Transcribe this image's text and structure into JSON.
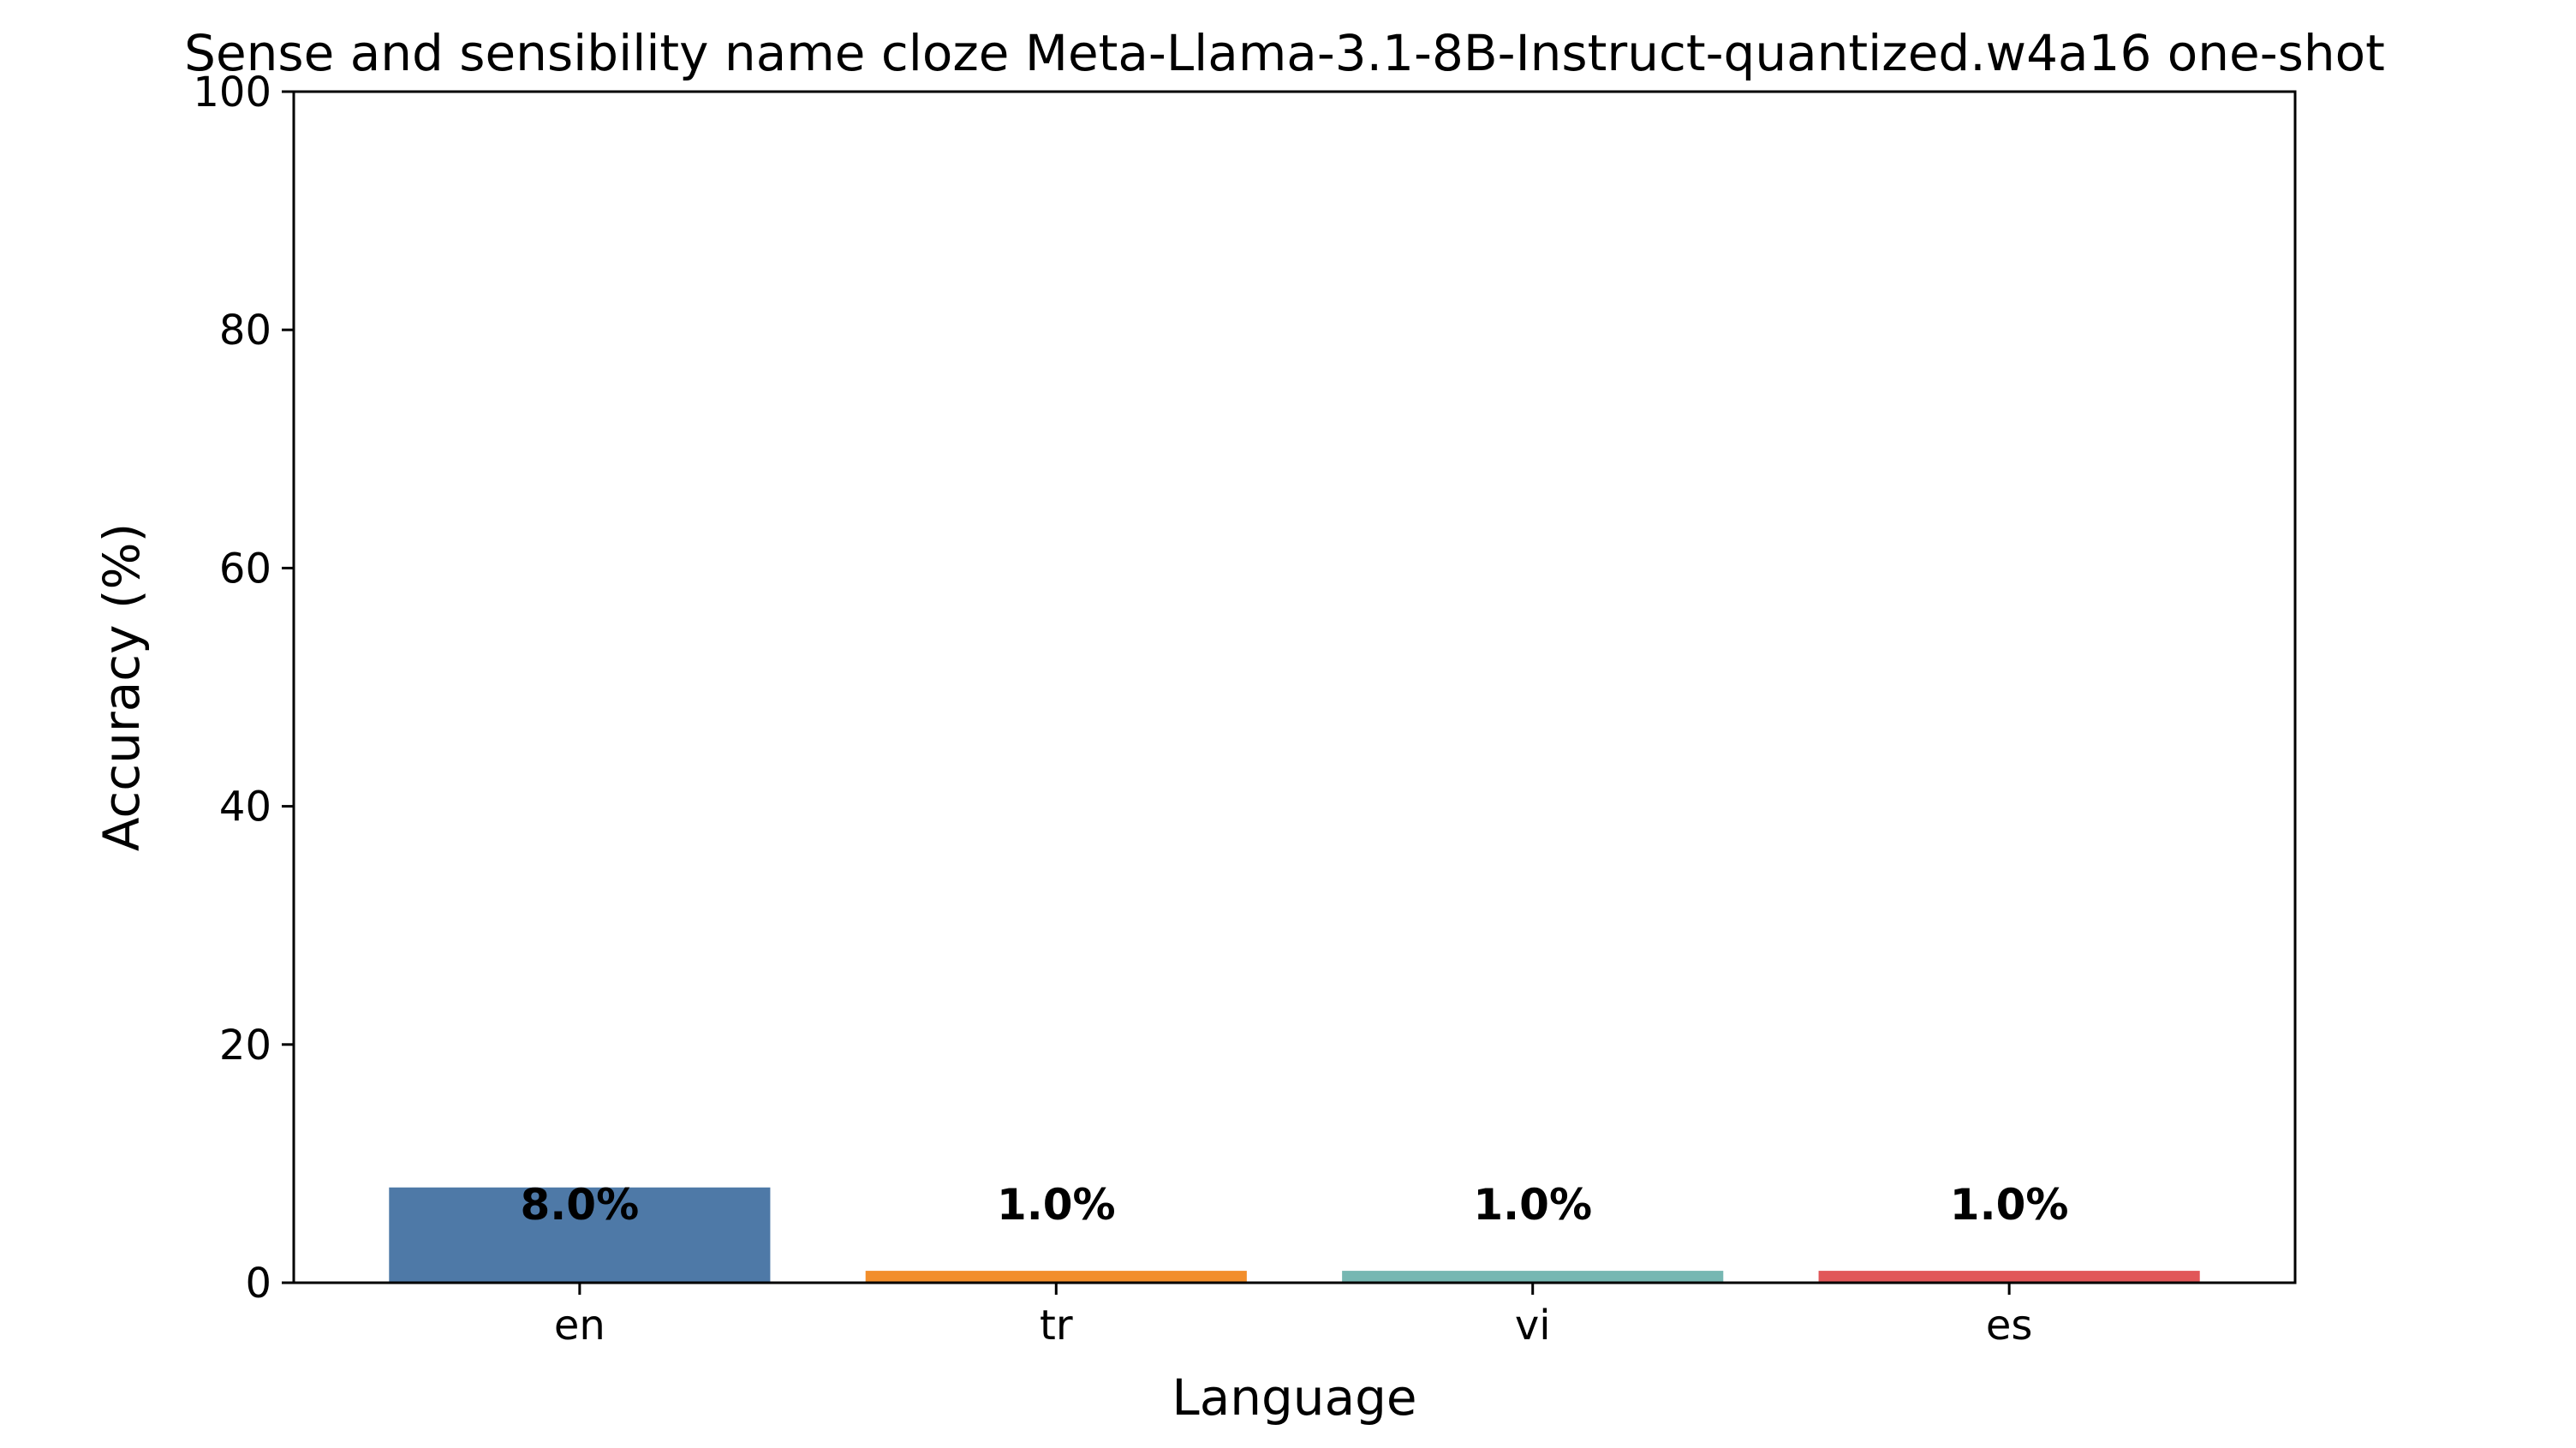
{
  "chart_data": {
    "type": "bar",
    "title": "Sense and sensibility name cloze Meta-Llama-3.1-8B-Instruct-quantized.w4a16 one-shot",
    "xlabel": "Language",
    "ylabel": "Accuracy (%)",
    "categories": [
      "en",
      "tr",
      "vi",
      "es"
    ],
    "values": [
      8.0,
      1.0,
      1.0,
      1.0
    ],
    "value_labels": [
      "8.0%",
      "1.0%",
      "1.0%",
      "1.0%"
    ],
    "colors": [
      "#4e79a7",
      "#f28e2b",
      "#76b7b2",
      "#e15759"
    ],
    "ylim": [
      0,
      100
    ],
    "yticks": [
      0,
      20,
      40,
      60,
      80,
      100
    ],
    "grid": false,
    "legend": "none"
  }
}
